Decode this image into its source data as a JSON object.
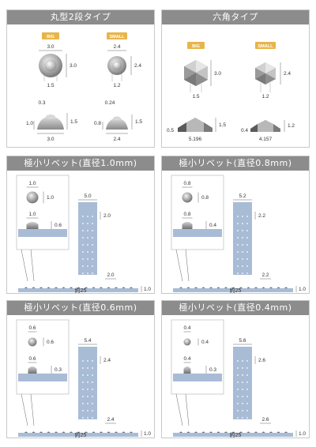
{
  "panels": [
    {
      "id": "round",
      "title": "丸型2段タイプ",
      "big": {
        "label": "BIG",
        "top_w": "3.0",
        "top_h": "3.0",
        "inner": "1.5",
        "side_top": "0.3",
        "side_left": "1.0",
        "side_right": "1.5",
        "side_base": "3.0"
      },
      "small": {
        "label": "SMALL",
        "top_w": "2.4",
        "top_h": "2.4",
        "inner": "1.2",
        "side_top": "0.24",
        "side_left": "0.8",
        "side_right": "1.5",
        "side_base": "2.4"
      }
    },
    {
      "id": "hex",
      "title": "六角タイプ",
      "big": {
        "label": "BIG",
        "top_w": "3.0",
        "top_h": "3.0",
        "inner": "1.5",
        "side_left": "0.5",
        "side_right": "1.5",
        "side_base": "5.196"
      },
      "small": {
        "label": "SMALL",
        "top_w": "2.4",
        "top_h": "2.4",
        "inner": "1.2",
        "side_left": "0.4",
        "side_right": "1.2",
        "side_base": "4.157"
      }
    },
    {
      "id": "r10",
      "title": "極小リベット(直径1.0mm)",
      "head_d": "1.0",
      "head_d2": "1.0",
      "side_d": "1.0",
      "side_h": "0.6",
      "strip_w": "5.0",
      "strip_pitch": "2.0",
      "row_pitch": "2.0",
      "row_h": "1.0",
      "row_len": "約25"
    },
    {
      "id": "r08",
      "title": "極小リベット(直径0.8mm)",
      "head_d": "0.8",
      "head_d2": "0.8",
      "side_d": "0.8",
      "side_h": "0.4",
      "strip_w": "5.2",
      "strip_pitch": "2.2",
      "row_pitch": "2.2",
      "row_h": "1.0",
      "row_len": "約25"
    },
    {
      "id": "r06",
      "title": "極小リベット(直径0.6mm)",
      "head_d": "0.6",
      "head_d2": "0.6",
      "side_d": "0.6",
      "side_h": "0.3",
      "strip_w": "5.4",
      "strip_pitch": "2.4",
      "row_pitch": "2.4",
      "row_h": "1.0",
      "row_len": "約25"
    },
    {
      "id": "r04",
      "title": "極小リベット(直径0.4mm)",
      "head_d": "0.4",
      "head_d2": "0.4",
      "side_d": "0.4",
      "side_h": "0.3",
      "strip_w": "5.6",
      "strip_pitch": "2.6",
      "row_pitch": "2.6",
      "row_h": "1.0",
      "row_len": "約25"
    }
  ],
  "colors": {
    "title_bg": "#8c8c8c",
    "badge": "#e8b54a",
    "blue": "#a9bcd6",
    "grey": "#9aa0a8"
  }
}
